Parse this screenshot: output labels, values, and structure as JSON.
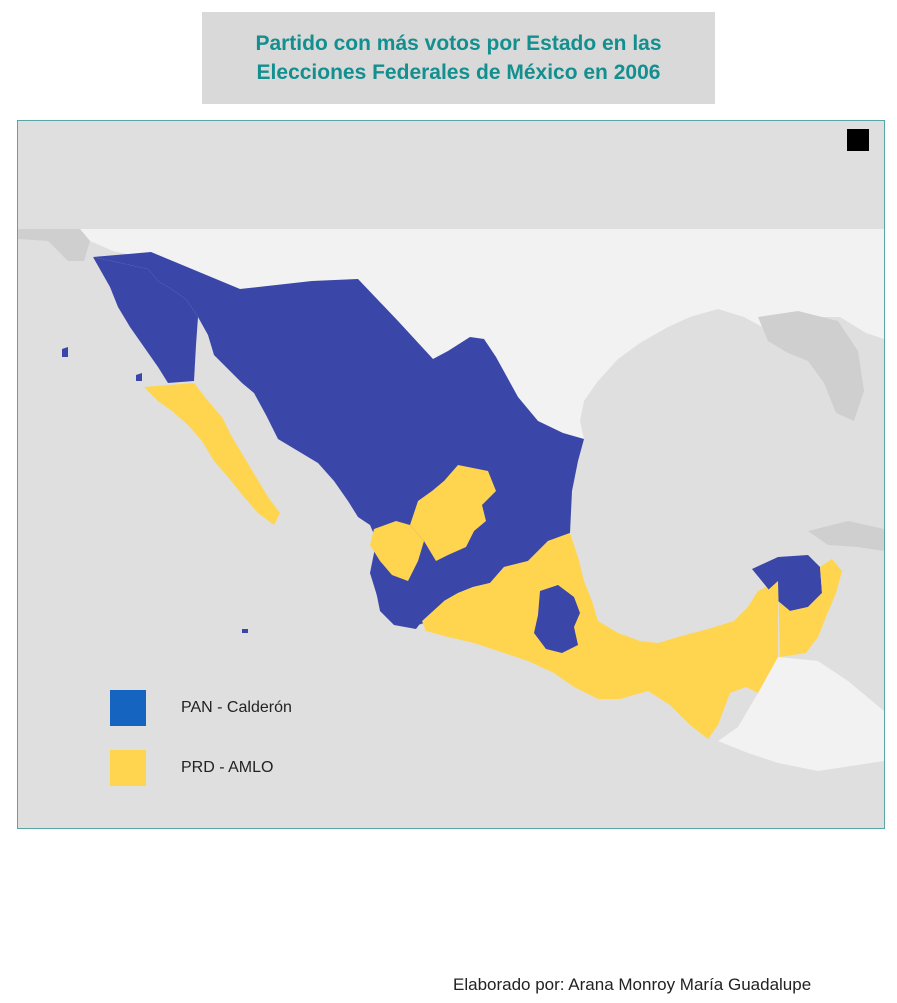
{
  "title": {
    "line1": "Partido con más votos por Estado en las",
    "line2": "Elecciones Federales de México en 2006"
  },
  "legend": [
    {
      "label": "PAN - Calderón",
      "color": "#1565c0"
    },
    {
      "label": "PRD - AMLO",
      "color": "#ffd54f"
    }
  ],
  "map_colors": {
    "pan_fill": "#3a47a8",
    "prd_fill": "#ffd54f",
    "land_light": "#f2f2f2",
    "land_gray": "#cfcfcf",
    "water": "#dfdfdf"
  },
  "credit": "Elaborado  por: Arana Monroy María Guadalupe"
}
